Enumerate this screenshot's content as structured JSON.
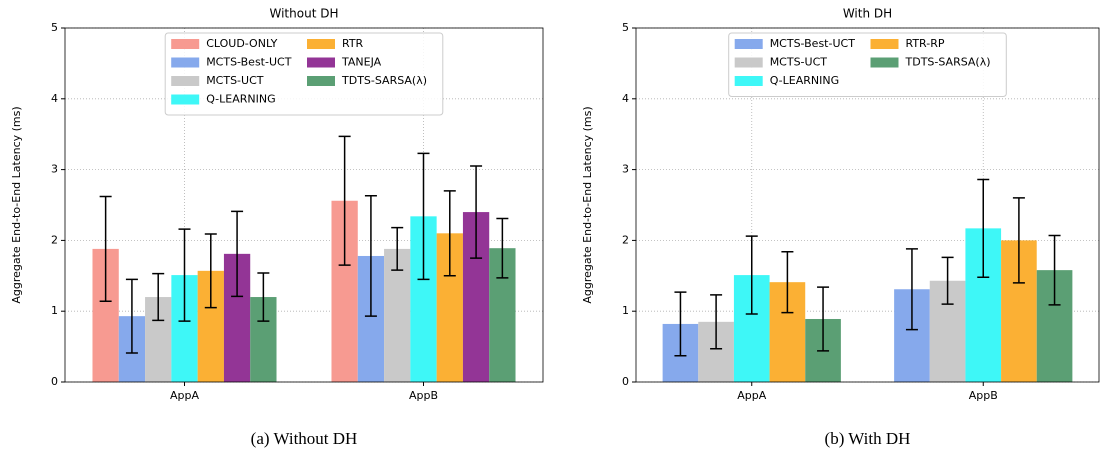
{
  "chart_data": [
    {
      "type": "bar",
      "title": "Without DH",
      "caption": "(a) Without DH",
      "ylabel": "Aggregate End-to-End Latency (ms)",
      "categories": [
        "AppA",
        "AppB"
      ],
      "ylim": [
        0,
        5
      ],
      "yticks": [
        0,
        1,
        2,
        3,
        4,
        5
      ],
      "grid": true,
      "legend": "upper center",
      "series": [
        {
          "name": "CLOUD-ONLY",
          "color": "#f79a91",
          "values": [
            1.88,
            2.56
          ],
          "errors": [
            0.74,
            0.91
          ]
        },
        {
          "name": "MCTS-Best-UCT",
          "color": "#86a9ec",
          "values": [
            0.93,
            1.78
          ],
          "errors": [
            0.52,
            0.85
          ]
        },
        {
          "name": "MCTS-UCT",
          "color": "#c9c9c9",
          "values": [
            1.2,
            1.88
          ],
          "errors": [
            0.33,
            0.3
          ]
        },
        {
          "name": "Q-LEARNING",
          "color": "#3ef7f7",
          "values": [
            1.51,
            2.34
          ],
          "errors": [
            0.65,
            0.89
          ]
        },
        {
          "name": "RTR",
          "color": "#fbb034",
          "values": [
            1.57,
            2.1
          ],
          "errors": [
            0.52,
            0.6
          ]
        },
        {
          "name": "TANEJA",
          "color": "#933596",
          "values": [
            1.81,
            2.4
          ],
          "errors": [
            0.6,
            0.65
          ]
        },
        {
          "name": "TDTS-SARSA(λ)",
          "color": "#5b9f74",
          "values": [
            1.2,
            1.89
          ],
          "errors": [
            0.34,
            0.42
          ]
        }
      ]
    },
    {
      "type": "bar",
      "title": "With DH",
      "caption": "(b) With DH",
      "ylabel": "Aggregate End-to-End Latency (ms)",
      "categories": [
        "AppA",
        "AppB"
      ],
      "ylim": [
        0,
        5
      ],
      "yticks": [
        0,
        1,
        2,
        3,
        4,
        5
      ],
      "grid": true,
      "legend": "upper center",
      "series": [
        {
          "name": "MCTS-Best-UCT",
          "color": "#86a9ec",
          "values": [
            0.82,
            1.31
          ],
          "errors": [
            0.45,
            0.57
          ]
        },
        {
          "name": "MCTS-UCT",
          "color": "#c9c9c9",
          "values": [
            0.85,
            1.43
          ],
          "errors": [
            0.38,
            0.33
          ]
        },
        {
          "name": "Q-LEARNING",
          "color": "#3ef7f7",
          "values": [
            1.51,
            2.17
          ],
          "errors": [
            0.55,
            0.69
          ]
        },
        {
          "name": "RTR-RP",
          "color": "#fbb034",
          "values": [
            1.41,
            2.0
          ],
          "errors": [
            0.43,
            0.6
          ]
        },
        {
          "name": "TDTS-SARSA(λ)",
          "color": "#5b9f74",
          "values": [
            0.89,
            1.58
          ],
          "errors": [
            0.45,
            0.49
          ]
        }
      ]
    }
  ]
}
